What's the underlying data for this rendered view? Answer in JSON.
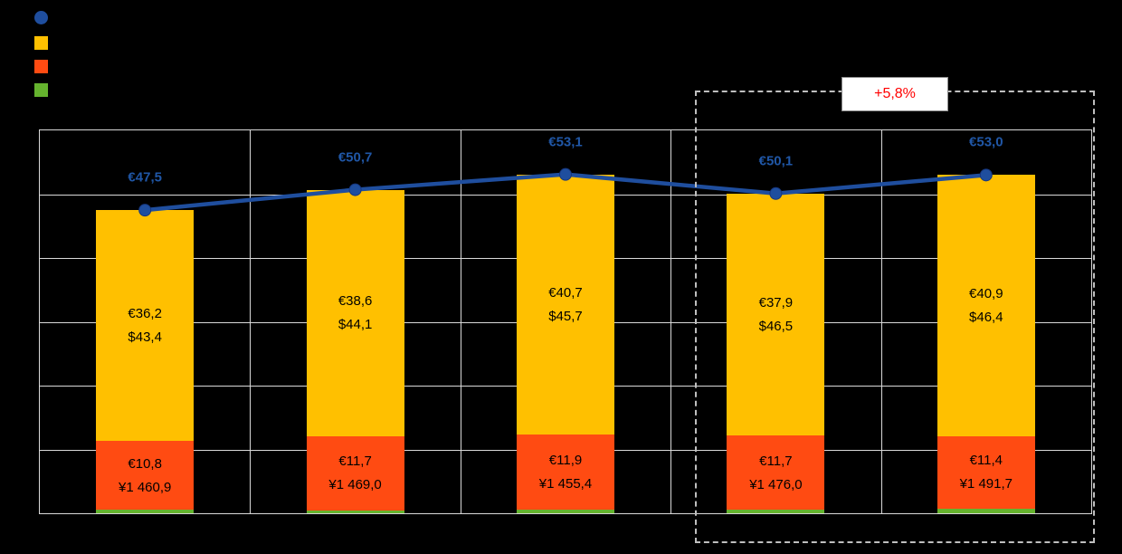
{
  "page": {
    "background": "#000000"
  },
  "legend": {
    "items": [
      {
        "name": "total-line",
        "marker": "circle",
        "color": "#1F4E9E",
        "label": ""
      },
      {
        "name": "segment-top",
        "marker": "square",
        "color": "#FFC000",
        "label": ""
      },
      {
        "name": "segment-middle",
        "marker": "square",
        "color": "#FF4B12",
        "label": ""
      },
      {
        "name": "segment-bottom",
        "marker": "square",
        "color": "#65B32E",
        "label": ""
      }
    ]
  },
  "annotation": {
    "box_label": "+5,8%",
    "text_color": "#FF0000"
  },
  "chart_data": {
    "type": "combo",
    "subtypes": [
      "stacked-bar",
      "line"
    ],
    "categories": [
      "",
      "",
      "",
      "",
      ""
    ],
    "ylim": [
      0,
      60
    ],
    "gridline_interval": 10,
    "grid": true,
    "legend_position": "top-left",
    "series": [
      {
        "name": "total-line",
        "type": "line",
        "color": "#1F4E9E",
        "values": [
          47.5,
          50.7,
          53.1,
          50.1,
          53.0
        ],
        "labels": [
          "€47,5",
          "€50,7",
          "€53,1",
          "€50,1",
          "€53,0"
        ]
      },
      {
        "name": "segment-top",
        "type": "bar",
        "color": "#FFC000",
        "values": [
          36.2,
          38.6,
          40.7,
          37.9,
          40.9
        ],
        "labels": [
          [
            "€36,2",
            "$43,4"
          ],
          [
            "€38,6",
            "$44,1"
          ],
          [
            "€40,7",
            "$45,7"
          ],
          [
            "€37,9",
            "$46,5"
          ],
          [
            "€40,9",
            "$46,4"
          ]
        ]
      },
      {
        "name": "segment-middle",
        "type": "bar",
        "color": "#FF4B12",
        "values": [
          10.8,
          11.7,
          11.9,
          11.7,
          11.4
        ],
        "labels": [
          [
            "€10,8",
            "¥1 460,9"
          ],
          [
            "€11,7",
            "¥1 469,0"
          ],
          [
            "€11,9",
            "¥1 455,4"
          ],
          [
            "€11,7",
            "¥1 476,0"
          ],
          [
            "€11,4",
            "¥1 491,7"
          ]
        ]
      },
      {
        "name": "segment-bottom",
        "type": "bar",
        "color": "#65B32E",
        "values": [
          0.5,
          0.4,
          0.5,
          0.5,
          0.7
        ],
        "labels": [
          [],
          [],
          [],
          [],
          []
        ]
      }
    ],
    "annotation": {
      "label": "+5,8%",
      "applies_to_categories": [
        4,
        5
      ]
    }
  }
}
